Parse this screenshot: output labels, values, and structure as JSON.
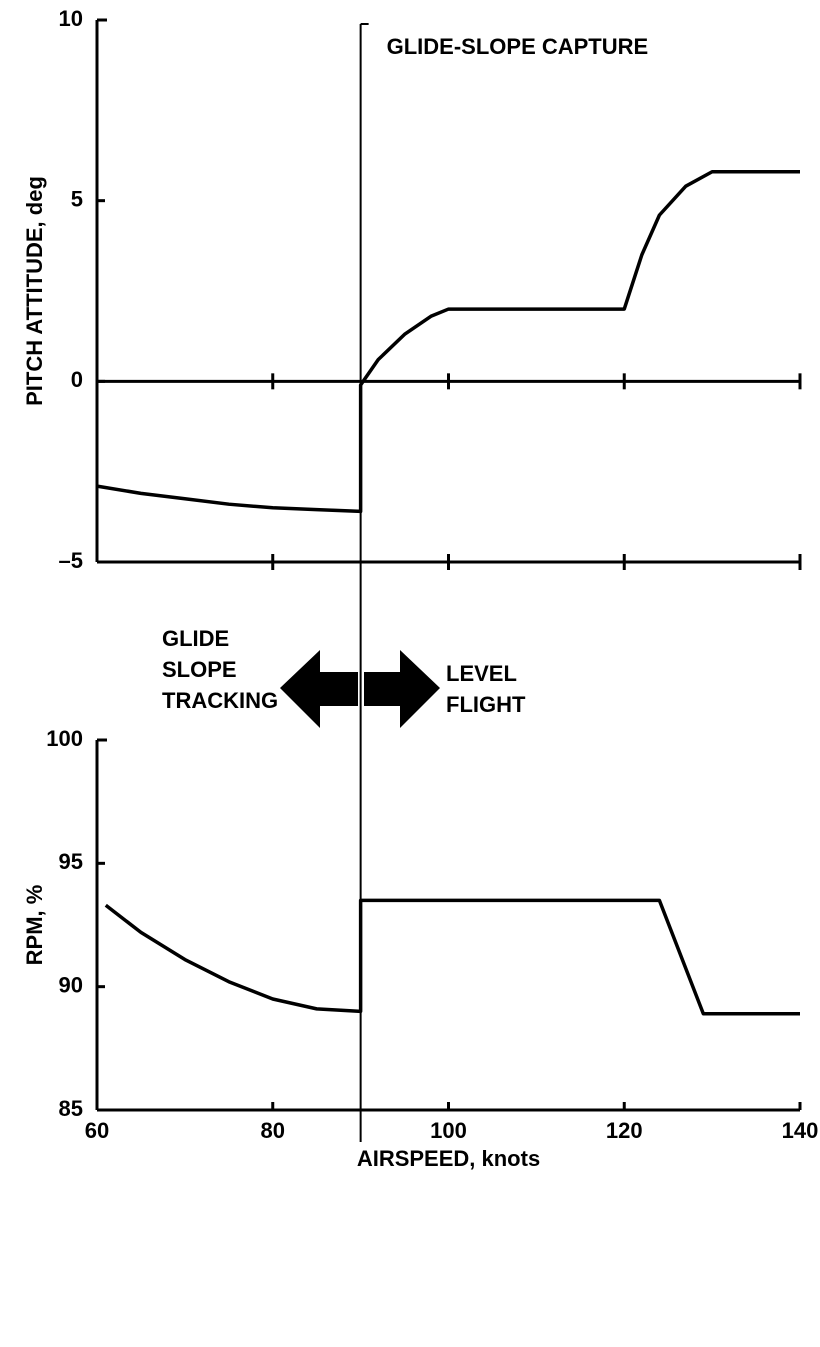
{
  "chart_data": [
    {
      "type": "line",
      "ylabel": "PITCH ATTITUDE, deg",
      "ylim": [
        -5,
        10
      ],
      "yticks": [
        10,
        5,
        0,
        {
          "value": -5,
          "label": "–5"
        }
      ],
      "xlim": [
        60,
        140
      ],
      "x": [
        60,
        65,
        70,
        75,
        80,
        85,
        90,
        90,
        92,
        95,
        98,
        100,
        110,
        120,
        122,
        124,
        127,
        130,
        135,
        140
      ],
      "values": [
        -2.9,
        -3.1,
        -3.25,
        -3.4,
        -3.5,
        -3.55,
        -3.6,
        -0.1,
        0.6,
        1.3,
        1.8,
        2.0,
        2.0,
        2.0,
        3.5,
        4.6,
        5.4,
        5.8,
        5.8,
        5.8
      ],
      "annotation": {
        "text": "GLIDE-SLOPE CAPTURE",
        "x": 90
      }
    },
    {
      "type": "line",
      "ylabel": "RPM, %",
      "xlabel": "AIRSPEED, knots",
      "ylim": [
        85,
        100
      ],
      "yticks": [
        100,
        95,
        90,
        85
      ],
      "xlim": [
        60,
        140
      ],
      "xticks": [
        60,
        80,
        100,
        120,
        140
      ],
      "x": [
        61,
        65,
        70,
        75,
        80,
        85,
        90,
        90,
        100,
        110,
        124,
        129,
        135,
        140
      ],
      "values": [
        93.3,
        92.2,
        91.1,
        90.2,
        89.5,
        89.1,
        89.0,
        93.5,
        93.5,
        93.5,
        93.5,
        88.9,
        88.9,
        88.9
      ],
      "annotations": [
        [
          "GLIDE",
          "SLOPE",
          "TRACKING"
        ],
        [
          "LEVEL",
          "FLIGHT"
        ]
      ]
    }
  ]
}
